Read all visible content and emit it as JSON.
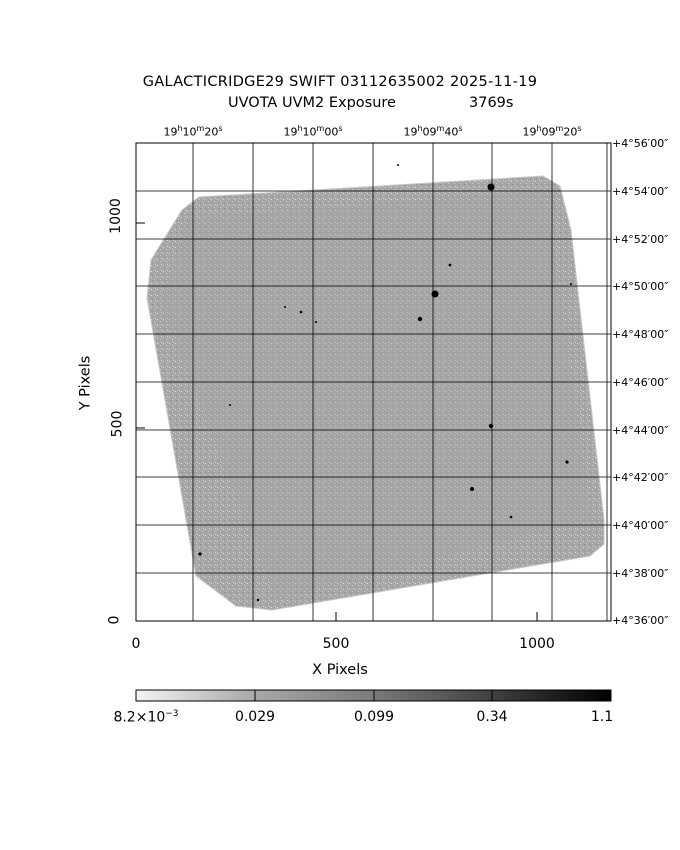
{
  "title": {
    "line1": "GALACTICRIDGE29 SWIFT 03112635002 2025-11-19",
    "line2": "UVOTA UVM2 Exposure",
    "exposure": "3769s"
  },
  "axes": {
    "xlabel": "X Pixels",
    "ylabel": "Y Pixels",
    "x_ticks": [
      "0",
      "500",
      "1000"
    ],
    "y_ticks": [
      "0",
      "500",
      "1000"
    ],
    "ra_ticks": [
      {
        "h": "19",
        "m": "10",
        "s": "20"
      },
      {
        "h": "19",
        "m": "10",
        "s": "00"
      },
      {
        "h": "19",
        "m": "09",
        "s": "40"
      },
      {
        "h": "19",
        "m": "09",
        "s": "20"
      }
    ],
    "dec_ticks": [
      "+4°56′00″",
      "+4°54′00″",
      "+4°52′00″",
      "+4°50′00″",
      "+4°48′00″",
      "+4°46′00″",
      "+4°44′00″",
      "+4°42′00″",
      "+4°40′00″",
      "+4°38′00″",
      "+4°36′00″"
    ]
  },
  "colorbar": {
    "labels": [
      "8.2×10",
      "0.029",
      "0.099",
      "0.34",
      "1.1"
    ],
    "first_exponent": "−3"
  },
  "image": {
    "field_color": "#a9a9a9",
    "grid_color": "#000000"
  }
}
